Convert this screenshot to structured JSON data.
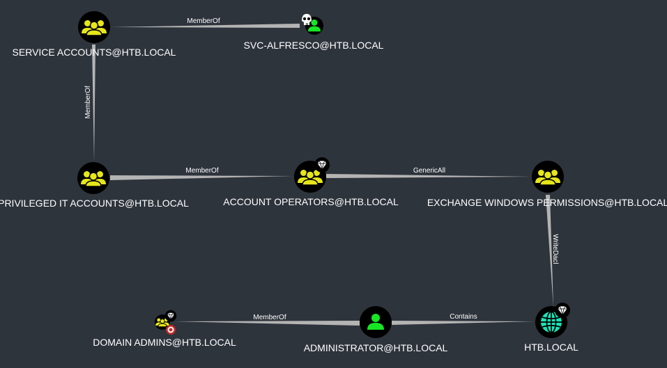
{
  "graph": {
    "nodes": [
      {
        "id": "n1",
        "label": "SERVICE ACCOUNTS@HTB.LOCAL",
        "type": "group",
        "icon": "group-icon",
        "badge": null
      },
      {
        "id": "n2",
        "label": "SVC-ALFRESCO@HTB.LOCAL",
        "type": "user",
        "icon": "user-icon",
        "badge": "skull-icon"
      },
      {
        "id": "n3",
        "label": "PRIVILEGED IT ACCOUNTS@HTB.LOCAL",
        "type": "group",
        "icon": "group-icon",
        "badge": null
      },
      {
        "id": "n4",
        "label": "ACCOUNT OPERATORS@HTB.LOCAL",
        "type": "group",
        "icon": "group-icon",
        "badge": "diamond-icon"
      },
      {
        "id": "n5",
        "label": "EXCHANGE WINDOWS PERMISSIONS@HTB.LOCAL",
        "type": "group",
        "icon": "group-icon",
        "badge": null
      },
      {
        "id": "n6",
        "label": "DOMAIN ADMINS@HTB.LOCAL",
        "type": "group",
        "icon": "group-icon",
        "badge": "diamond-icon",
        "badge2": "target-icon"
      },
      {
        "id": "n7",
        "label": "ADMINISTRATOR@HTB.LOCAL",
        "type": "user",
        "icon": "user-icon",
        "badge": null
      },
      {
        "id": "n8",
        "label": "HTB.LOCAL",
        "type": "domain",
        "icon": "globe-icon",
        "badge": "diamond-icon"
      }
    ],
    "edges": [
      {
        "from": "n1",
        "to": "n2",
        "label": "MemberOf"
      },
      {
        "from": "n1",
        "to": "n3",
        "label": "MemberOf"
      },
      {
        "from": "n3",
        "to": "n4",
        "label": "MemberOf"
      },
      {
        "from": "n4",
        "to": "n5",
        "label": "GenericAll"
      },
      {
        "from": "n5",
        "to": "n8",
        "label": "WriteDacl"
      },
      {
        "from": "n8",
        "to": "n7",
        "label": "Contains"
      },
      {
        "from": "n7",
        "to": "n6",
        "label": "MemberOf"
      }
    ]
  },
  "colors": {
    "background": "#2e343c",
    "edge": "#b4b4b4",
    "group": "#e6e619",
    "user": "#17e625",
    "domain": "#17e6b9",
    "node_circle": "#000000",
    "target": "#c62828",
    "text": "#ffffff"
  }
}
